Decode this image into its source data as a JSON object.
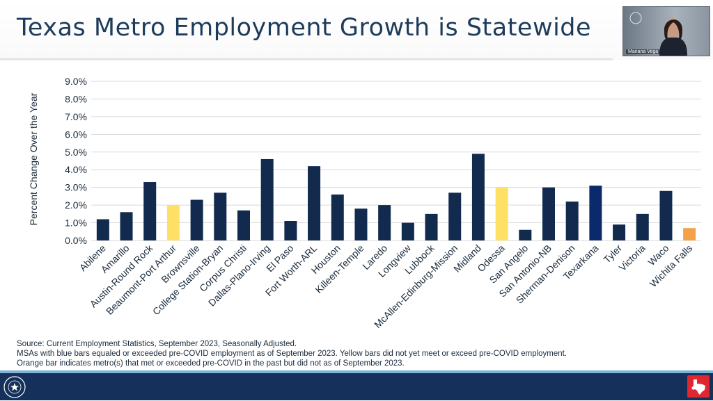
{
  "slide": {
    "title": "Texas Metro Employment Growth is Statewide"
  },
  "video": {
    "participant_name": "Mariana Vega"
  },
  "colors": {
    "blue": "#112a4d",
    "blue_highlight": "#0b2a6b",
    "yellow": "#ffe066",
    "orange": "#f4a24a",
    "title": "#1d3c5c",
    "footer": "#15305a"
  },
  "chart_data": {
    "type": "bar",
    "ylabel": "Percent Change Over the Year",
    "xlabel": "",
    "ylim": [
      0,
      9
    ],
    "yticks": [
      "0.0%",
      "1.0%",
      "2.0%",
      "3.0%",
      "4.0%",
      "5.0%",
      "6.0%",
      "7.0%",
      "8.0%",
      "9.0%"
    ],
    "grid": "horizontal",
    "categories": [
      "Abilene",
      "Amarillo",
      "Austin-Round Rock",
      "Beaumont-Port Arthur",
      "Brownsville",
      "College Station-Bryan",
      "Corpus Christi",
      "Dallas-Plano-Irving",
      "El Paso",
      "Fort Worth-ARL",
      "Houston",
      "Killeen-Temple",
      "Laredo",
      "Longview",
      "Lubbock",
      "McAllen-Edinburg-Mission",
      "Midland",
      "Odessa",
      "San Angelo",
      "San Antonio-NB",
      "Sherman-Denison",
      "Texarkana",
      "Tyler",
      "Victoria",
      "Waco",
      "Wichita Falls"
    ],
    "values": [
      1.2,
      1.6,
      3.3,
      2.0,
      2.3,
      2.7,
      1.7,
      4.6,
      1.1,
      4.2,
      2.6,
      1.8,
      2.0,
      1.0,
      1.5,
      2.7,
      4.9,
      3.0,
      0.6,
      3.0,
      2.2,
      3.1,
      0.9,
      1.5,
      2.8,
      0.7
    ],
    "bar_colors": [
      "blue",
      "blue",
      "blue",
      "yellow",
      "blue",
      "blue",
      "blue",
      "blue",
      "blue",
      "blue",
      "blue",
      "blue",
      "blue",
      "blue",
      "blue",
      "blue",
      "blue",
      "yellow",
      "blue",
      "blue",
      "blue",
      "blue_highlight",
      "blue",
      "blue",
      "blue",
      "orange"
    ]
  },
  "footnote": {
    "source": "Source: Current Employment Statistics, September 2023, Seasonally Adjusted.",
    "note": "MSAs with blue bars equaled or exceeded pre-COVID employment as of September 2023. Yellow bars did not yet meet or exceed pre-COVID employment. Orange bar indicates metro(s) that met or exceeded pre-COVID in the past but did not as of September 2023."
  }
}
